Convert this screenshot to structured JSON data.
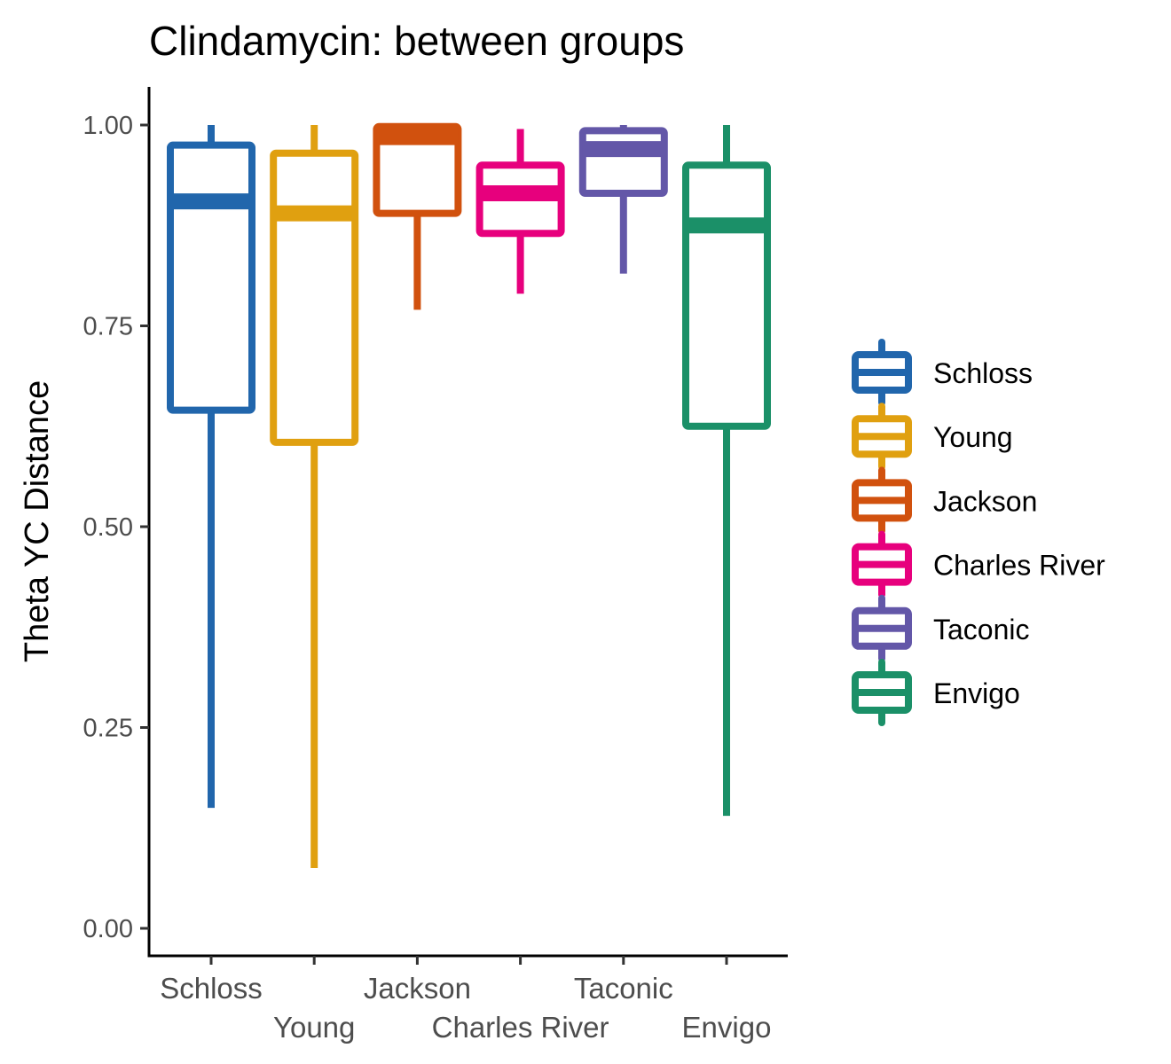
{
  "chart_data": {
    "type": "boxplot",
    "title": "Clindamycin: between groups",
    "xlabel": "",
    "ylabel": "Theta YC Distance",
    "ylim": [
      -0.03,
      1.05
    ],
    "yticks": [
      "0.00",
      "0.25",
      "0.50",
      "0.75",
      "1.00"
    ],
    "ytick_values": [
      0,
      0.25,
      0.5,
      0.75,
      1.0
    ],
    "grid": false,
    "legend_position": "right",
    "categories": [
      "Schloss",
      "Young",
      "Jackson",
      "Charles River",
      "Taconic",
      "Envigo"
    ],
    "series": [
      {
        "name": "Schloss",
        "color": "#2166ac",
        "whisker_low": 0.15,
        "q1": 0.645,
        "median": 0.905,
        "q3": 0.975,
        "whisker_high": 1.0
      },
      {
        "name": "Young",
        "color": "#e0a010",
        "whisker_low": 0.075,
        "q1": 0.605,
        "median": 0.89,
        "q3": 0.965,
        "whisker_high": 1.0
      },
      {
        "name": "Jackson",
        "color": "#d1510e",
        "whisker_low": 0.77,
        "q1": 0.89,
        "median": 0.985,
        "q3": 0.998,
        "whisker_high": 1.0
      },
      {
        "name": "Charles River",
        "color": "#e7007d",
        "whisker_low": 0.79,
        "q1": 0.865,
        "median": 0.915,
        "q3": 0.95,
        "whisker_high": 0.995
      },
      {
        "name": "Taconic",
        "color": "#6357a8",
        "whisker_low": 0.815,
        "q1": 0.915,
        "median": 0.97,
        "q3": 0.993,
        "whisker_high": 1.0
      },
      {
        "name": "Envigo",
        "color": "#1b9068",
        "whisker_low": 0.14,
        "q1": 0.625,
        "median": 0.875,
        "q3": 0.95,
        "whisker_high": 1.0
      }
    ]
  }
}
